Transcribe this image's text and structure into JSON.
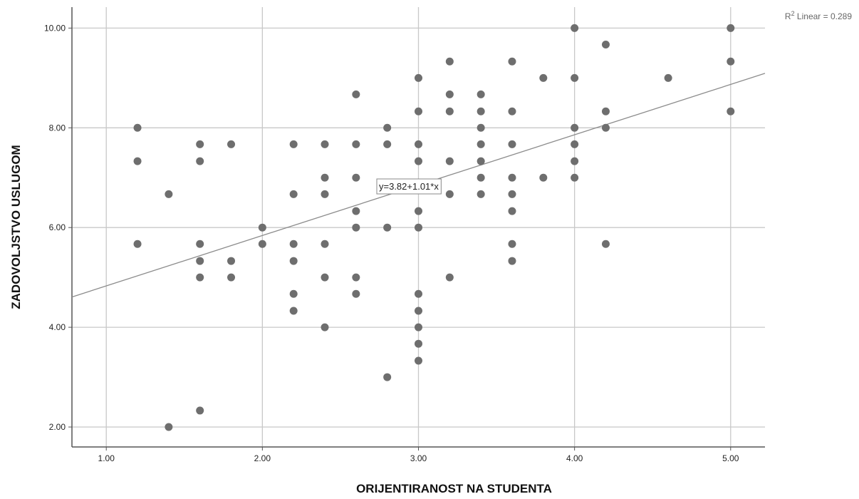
{
  "chart_data": {
    "type": "scatter",
    "title": "",
    "xlabel": "ORIJENTIRANOST NA STUDENTA",
    "ylabel": "ZADOVOLJSTVO USLUGOM",
    "xlim": [
      0.78,
      5.22
    ],
    "ylim": [
      1.6,
      10.42
    ],
    "xticks": [
      1,
      2,
      3,
      4,
      5
    ],
    "xtick_labels": [
      "1.00",
      "2.00",
      "3.00",
      "4.00",
      "5.00"
    ],
    "yticks": [
      2,
      4,
      6,
      8,
      10
    ],
    "ytick_labels": [
      "2.00",
      "4.00",
      "6.00",
      "8.00",
      "10.00"
    ],
    "grid": true,
    "points": [
      [
        1.2,
        8.0
      ],
      [
        1.2,
        7.33
      ],
      [
        1.2,
        5.67
      ],
      [
        1.4,
        6.67
      ],
      [
        1.4,
        2.0
      ],
      [
        1.6,
        7.67
      ],
      [
        1.6,
        7.33
      ],
      [
        1.6,
        5.67
      ],
      [
        1.6,
        5.33
      ],
      [
        1.6,
        5.0
      ],
      [
        1.6,
        2.33
      ],
      [
        1.8,
        7.67
      ],
      [
        1.8,
        5.33
      ],
      [
        1.8,
        5.0
      ],
      [
        2.0,
        6.0
      ],
      [
        2.0,
        5.67
      ],
      [
        2.2,
        7.67
      ],
      [
        2.2,
        6.67
      ],
      [
        2.2,
        5.67
      ],
      [
        2.2,
        5.33
      ],
      [
        2.2,
        4.67
      ],
      [
        2.2,
        4.33
      ],
      [
        2.4,
        7.67
      ],
      [
        2.4,
        7.0
      ],
      [
        2.4,
        6.67
      ],
      [
        2.4,
        5.67
      ],
      [
        2.4,
        5.0
      ],
      [
        2.4,
        4.0
      ],
      [
        2.6,
        8.67
      ],
      [
        2.6,
        7.67
      ],
      [
        2.6,
        7.0
      ],
      [
        2.6,
        6.33
      ],
      [
        2.6,
        6.0
      ],
      [
        2.6,
        5.0
      ],
      [
        2.6,
        4.67
      ],
      [
        2.8,
        8.0
      ],
      [
        2.8,
        7.67
      ],
      [
        2.8,
        6.0
      ],
      [
        2.8,
        3.0
      ],
      [
        3.0,
        9.0
      ],
      [
        3.0,
        8.33
      ],
      [
        3.0,
        7.67
      ],
      [
        3.0,
        7.33
      ],
      [
        3.0,
        6.33
      ],
      [
        3.0,
        6.0
      ],
      [
        3.0,
        4.67
      ],
      [
        3.0,
        4.33
      ],
      [
        3.0,
        4.0
      ],
      [
        3.0,
        3.67
      ],
      [
        3.0,
        3.33
      ],
      [
        3.2,
        9.33
      ],
      [
        3.2,
        8.67
      ],
      [
        3.2,
        8.33
      ],
      [
        3.2,
        7.33
      ],
      [
        3.2,
        6.67
      ],
      [
        3.2,
        5.0
      ],
      [
        3.4,
        8.67
      ],
      [
        3.4,
        8.33
      ],
      [
        3.4,
        8.0
      ],
      [
        3.4,
        7.67
      ],
      [
        3.4,
        7.33
      ],
      [
        3.4,
        7.0
      ],
      [
        3.4,
        6.67
      ],
      [
        3.6,
        9.33
      ],
      [
        3.6,
        8.33
      ],
      [
        3.6,
        7.67
      ],
      [
        3.6,
        7.0
      ],
      [
        3.6,
        6.67
      ],
      [
        3.6,
        6.33
      ],
      [
        3.6,
        5.67
      ],
      [
        3.6,
        5.33
      ],
      [
        3.8,
        9.0
      ],
      [
        3.8,
        7.0
      ],
      [
        4.0,
        10.0
      ],
      [
        4.0,
        9.0
      ],
      [
        4.0,
        8.0
      ],
      [
        4.0,
        7.67
      ],
      [
        4.0,
        7.33
      ],
      [
        4.0,
        7.0
      ],
      [
        4.2,
        9.67
      ],
      [
        4.2,
        8.33
      ],
      [
        4.2,
        8.0
      ],
      [
        4.2,
        5.67
      ],
      [
        4.6,
        9.0
      ],
      [
        5.0,
        10.0
      ],
      [
        5.0,
        9.33
      ],
      [
        5.0,
        8.33
      ]
    ],
    "fit_line": {
      "intercept": 3.82,
      "slope": 1.01,
      "equation_label": "y=3.82+1.01*x"
    },
    "r2_label": {
      "prefix": "R",
      "superscript": "2",
      "suffix": " Linear = 0.289"
    },
    "colors": {
      "points": "#6e6e6e",
      "grid": "#c8c8c8",
      "fit_line": "#8c8c8c",
      "axis": "#555555"
    }
  }
}
